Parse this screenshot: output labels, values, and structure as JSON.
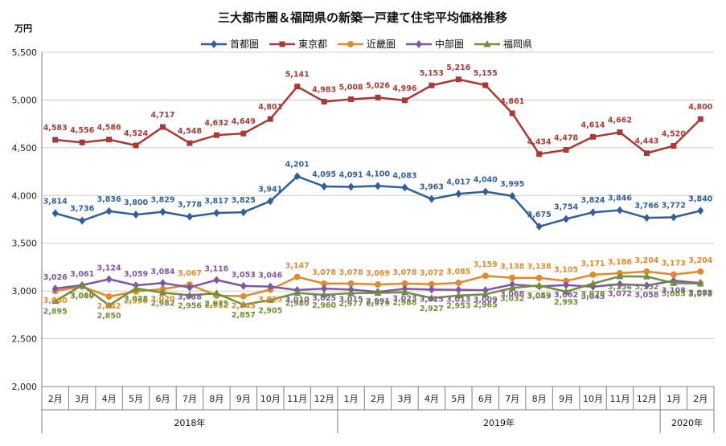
{
  "chart_data": {
    "type": "line",
    "title": "三大都市圏＆福岡県の新築一戸建て住宅平均価格推移",
    "ylabel": "万円",
    "ylim": [
      2000,
      5500
    ],
    "yticks": [
      "2,000",
      "2,500",
      "3,000",
      "3,500",
      "4,000",
      "4,500",
      "5,000",
      "5,500"
    ],
    "grid": true,
    "legend_position": "top",
    "categories": [
      "2月",
      "3月",
      "4月",
      "5月",
      "6月",
      "7月",
      "8月",
      "9月",
      "10月",
      "11月",
      "12月",
      "1月",
      "2月",
      "3月",
      "4月",
      "5月",
      "6月",
      "7月",
      "8月",
      "9月",
      "10月",
      "11月",
      "12月",
      "1月",
      "2月"
    ],
    "years": [
      {
        "label": "2018年",
        "from": 0,
        "to": 10
      },
      {
        "label": "2019年",
        "from": 11,
        "to": 22
      },
      {
        "label": "2020年",
        "from": 23,
        "to": 24
      }
    ],
    "series": [
      {
        "name": "首都圏",
        "color": "#2f5f99",
        "marker": "diamond",
        "values": [
          3814,
          3736,
          3836,
          3800,
          3829,
          3778,
          3817,
          3825,
          3941,
          4201,
          4095,
          4091,
          4100,
          4083,
          3963,
          4017,
          4040,
          3995,
          3675,
          3754,
          3824,
          3846,
          3766,
          3772,
          3840
        ],
        "labels": [
          "3,814",
          "3,736",
          "3,836",
          "3,800",
          "3,829",
          "3,778",
          "3,817",
          "3,825",
          "3,941",
          "4,201",
          "4,095",
          "4,091",
          "4,100",
          "4,083",
          "3,963",
          "4,017",
          "4,040",
          "3,995",
          "3,675",
          "3,754",
          "3,824",
          "3,846",
          "3,766",
          "3,772",
          "3,840"
        ]
      },
      {
        "name": "東京都",
        "color": "#a83a36",
        "marker": "square",
        "values": [
          4583,
          4556,
          4586,
          4524,
          4717,
          4548,
          4632,
          4649,
          4801,
          5141,
          4983,
          5008,
          5026,
          4996,
          5153,
          5216,
          5155,
          4861,
          4434,
          4478,
          4614,
          4662,
          4443,
          4520,
          4800
        ],
        "labels": [
          "4,583",
          "4,556",
          "4,586",
          "4,524",
          "4,717",
          "4,548",
          "4,632",
          "4,649",
          "4,801",
          "5,141",
          "4,983",
          "5,008",
          "5,026",
          "4,996",
          "5,153",
          "5,216",
          "5,155",
          "4,861",
          "4,434",
          "4,478",
          "4,614",
          "4,662",
          "4,443",
          "4,520",
          "4,800"
        ]
      },
      {
        "name": "近畿圏",
        "color": "#e08a2e",
        "marker": "circle",
        "values": [
          3000,
          3047,
          2942,
          2996,
          3020,
          3067,
          2952,
          2945,
          3015,
          3147,
          3078,
          3078,
          3069,
          3078,
          3072,
          3085,
          3159,
          3138,
          3138,
          3105,
          3171,
          3186,
          3204,
          3173,
          3204
        ],
        "labels": [
          "3,000",
          "3,047",
          "2,942",
          "2,996",
          "3,020",
          "3,067",
          "2,952",
          "2,945",
          "3,015",
          "3,147",
          "3,078",
          "3,078",
          "3,069",
          "3,078",
          "3,072",
          "3,085",
          "3,159",
          "3,138",
          "3,138",
          "3,105",
          "3,171",
          "3,186",
          "3,204",
          "3,173",
          "3,204"
        ]
      },
      {
        "name": "中部圏",
        "color": "#7f55a8",
        "marker": "diamond",
        "values": [
          3026,
          3061,
          3124,
          3059,
          3084,
          3038,
          3116,
          3053,
          3046,
          3010,
          3025,
          3015,
          2991,
          3023,
          3015,
          3013,
          3009,
          3068,
          3049,
          3062,
          3045,
          3072,
          3058,
          3108,
          3083
        ],
        "labels": [
          "3,026",
          "3,061",
          "3,124",
          "3,059",
          "3,084",
          "3,038",
          "3,116",
          "3,053",
          "3,046",
          "3,010",
          "3,025",
          "3,015",
          "2,991",
          "3,023",
          "3,015",
          "3,013",
          "3,009",
          "3,068",
          "3,049",
          "3,062",
          "3,045",
          "3,072",
          "3,058",
          "3,108",
          "3,083"
        ]
      },
      {
        "name": "福岡県",
        "color": "#6f8f3a",
        "marker": "triangle",
        "values": [
          2895,
          3060,
          2850,
          3028,
          2982,
          2956,
          2975,
          2857,
          2905,
          2980,
          2960,
          2977,
          2979,
          2988,
          2927,
          2953,
          2965,
          3032,
          3059,
          2993,
          3078,
          3154,
          3152,
          3083,
          3078
        ],
        "labels": [
          "2,895",
          "3,060",
          "2,850",
          "3,028",
          "2,982",
          "2,956",
          "2,975",
          "2,857",
          "2,905",
          "2,980",
          "2,960",
          "2,977",
          "2,979",
          "2,988",
          "2,927",
          "2,953",
          "2,965",
          "3,032",
          "3,059",
          "2,993",
          "3,078",
          "3,154",
          "3,152",
          "3,083",
          "3,078"
        ]
      }
    ]
  }
}
